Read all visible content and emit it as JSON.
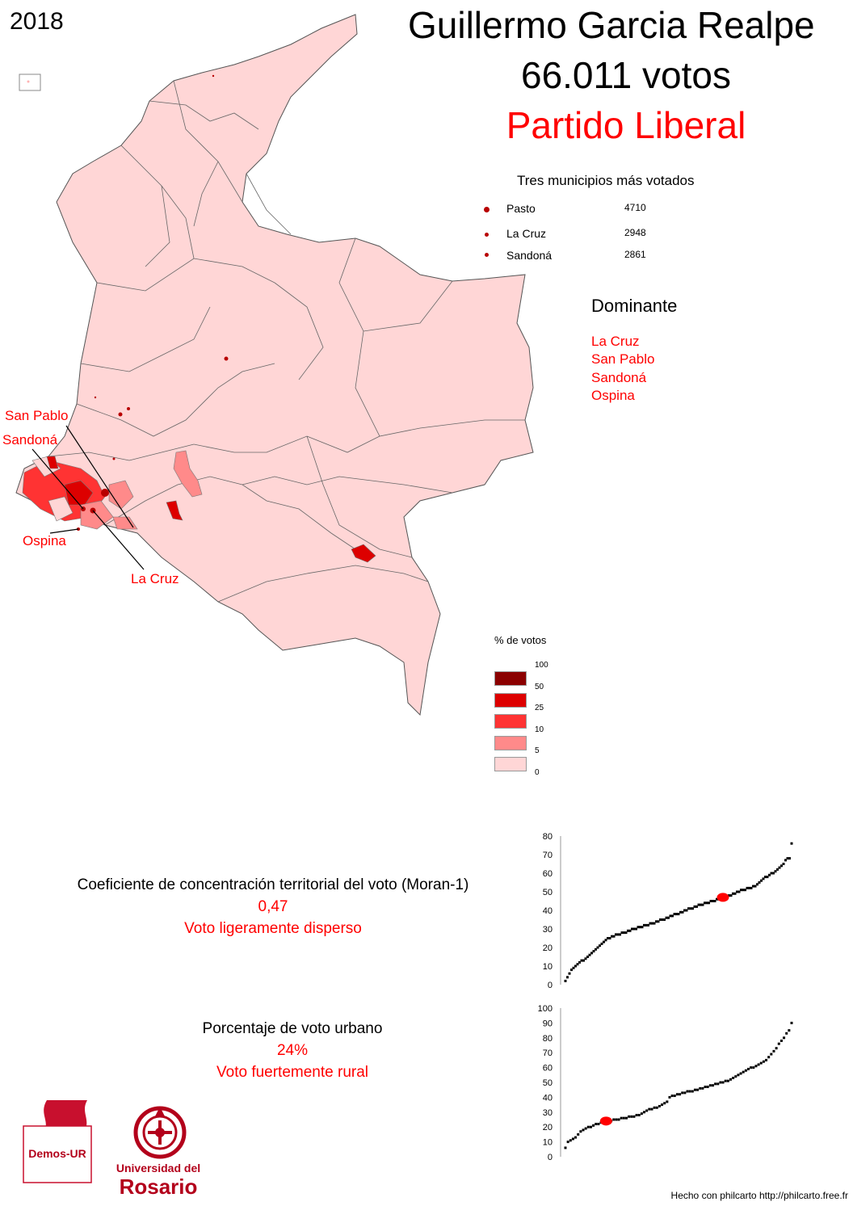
{
  "year": "2018",
  "candidate": {
    "name": "Guillermo Garcia Realpe",
    "votes": "66.011 votos",
    "party": "Partido Liberal",
    "party_color": "#ff0000"
  },
  "top_municipalities": {
    "title": "Tres municipios más votados",
    "items": [
      {
        "name": "Pasto",
        "votes": "4710"
      },
      {
        "name": "La Cruz",
        "votes": "2948"
      },
      {
        "name": "Sandoná",
        "votes": "2861"
      }
    ]
  },
  "dominant": {
    "title": "Dominante",
    "items": [
      "La Cruz",
      "San Pablo",
      "Sandoná",
      "Ospina"
    ]
  },
  "map_labels": {
    "san_pablo": "San Pablo",
    "sandona": "Sandoná",
    "ospina": "Ospina",
    "la_cruz": "La Cruz"
  },
  "legend": {
    "title": "% de votos",
    "breaks": [
      "100",
      "50",
      "25",
      "10",
      "5",
      "0"
    ],
    "colors": [
      "#8b0000",
      "#dd0000",
      "#ff3333",
      "#ff8a8a",
      "#ffd6d6"
    ]
  },
  "moran": {
    "label": "Coeficiente de concentración territorial del voto (Moran-1)",
    "value": "0,47",
    "description": "Voto ligeramente disperso"
  },
  "urban": {
    "label": "Porcentaje de voto urbano",
    "value": "24%",
    "description": "Voto fuertemente rural"
  },
  "logos": {
    "demos": "Demos-UR",
    "university_line1": "Universidad del",
    "university_line2": "Rosario"
  },
  "footer": "Hecho con philcarto http://philcarto.free.fr",
  "chart_data": [
    {
      "type": "scatter",
      "ylim": [
        0,
        80
      ],
      "yticks": [
        "0",
        "10",
        "20",
        "30",
        "40",
        "50",
        "60",
        "70",
        "80"
      ],
      "highlight_y": 47,
      "description_key": "moran",
      "y": [
        2,
        4,
        6,
        8,
        9,
        10,
        11,
        12,
        13,
        13,
        14,
        15,
        16,
        17,
        18,
        19,
        20,
        21,
        22,
        23,
        24,
        25,
        25,
        26,
        26,
        27,
        27,
        27,
        28,
        28,
        28,
        29,
        29,
        30,
        30,
        30,
        31,
        31,
        31,
        32,
        32,
        32,
        33,
        33,
        33,
        34,
        34,
        35,
        35,
        35,
        36,
        36,
        37,
        37,
        38,
        38,
        38,
        39,
        39,
        40,
        40,
        41,
        41,
        41,
        42,
        42,
        43,
        43,
        43,
        44,
        44,
        44,
        45,
        45,
        45,
        46,
        46,
        46,
        47,
        47,
        47,
        48,
        48,
        49,
        49,
        50,
        50,
        51,
        51,
        51,
        52,
        52,
        52,
        53,
        53,
        54,
        55,
        56,
        57,
        58,
        58,
        59,
        60,
        60,
        61,
        62,
        63,
        64,
        65,
        67,
        68,
        68,
        76
      ]
    },
    {
      "type": "scatter",
      "ylim": [
        0,
        100
      ],
      "yticks": [
        "0",
        "10",
        "20",
        "30",
        "40",
        "50",
        "60",
        "70",
        "80",
        "90",
        "100"
      ],
      "highlight_y": 24,
      "description_key": "urban",
      "y": [
        6,
        10,
        11,
        12,
        13,
        15,
        17,
        18,
        19,
        20,
        20,
        21,
        22,
        22,
        23,
        23,
        24,
        24,
        24,
        25,
        25,
        25,
        26,
        26,
        26,
        27,
        27,
        27,
        28,
        28,
        29,
        30,
        31,
        32,
        32,
        33,
        33,
        34,
        35,
        36,
        37,
        40,
        41,
        41,
        42,
        42,
        43,
        43,
        44,
        44,
        44,
        45,
        45,
        46,
        46,
        47,
        47,
        48,
        48,
        49,
        49,
        50,
        50,
        51,
        51,
        52,
        53,
        54,
        55,
        56,
        57,
        58,
        59,
        60,
        60,
        61,
        62,
        63,
        64,
        65,
        67,
        69,
        71,
        73,
        76,
        78,
        80,
        83,
        85,
        90
      ]
    }
  ]
}
